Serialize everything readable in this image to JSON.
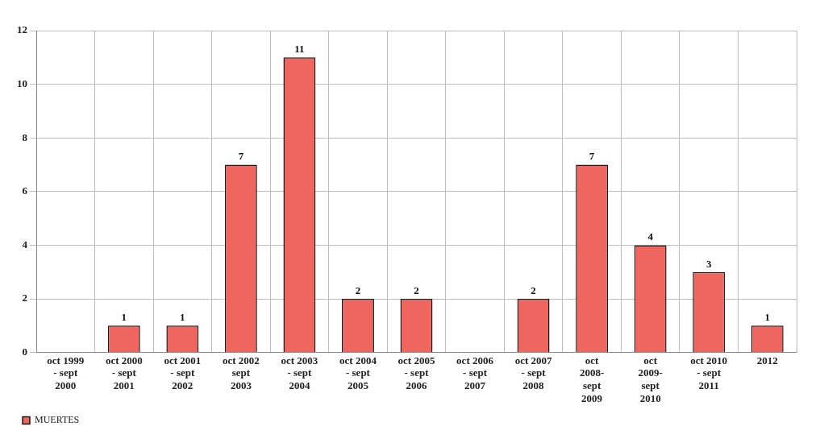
{
  "chart_data": {
    "type": "bar",
    "categories": [
      "oct 1999 - sept 2000",
      "oct 2000 - sept 2001",
      "oct 2001 - sept 2002",
      "oct 2002 sept 2003",
      "oct 2003 - sept 2004",
      "oct 2004 - sept 2005",
      "oct 2005 - sept 2006",
      "oct 2006 - sept 2007",
      "oct 2007 - sept 2008",
      "oct 2008- sept 2009",
      "oct 2009- sept 2010",
      "oct 2010 - sept 2011",
      "2012"
    ],
    "series": [
      {
        "name": "MUERTES",
        "color": "#f0655d",
        "values": [
          0,
          1,
          1,
          7,
          11,
          2,
          2,
          0,
          2,
          7,
          4,
          3,
          1
        ],
        "value_labels": [
          null,
          "1",
          "1",
          "7",
          "11",
          "2",
          "2",
          null,
          "2",
          "7",
          "4",
          "3",
          "1"
        ]
      }
    ],
    "ylim": [
      0,
      12
    ],
    "yticks": [
      0,
      2,
      4,
      6,
      8,
      10,
      12
    ],
    "grid": true,
    "legend": "bottom left"
  }
}
